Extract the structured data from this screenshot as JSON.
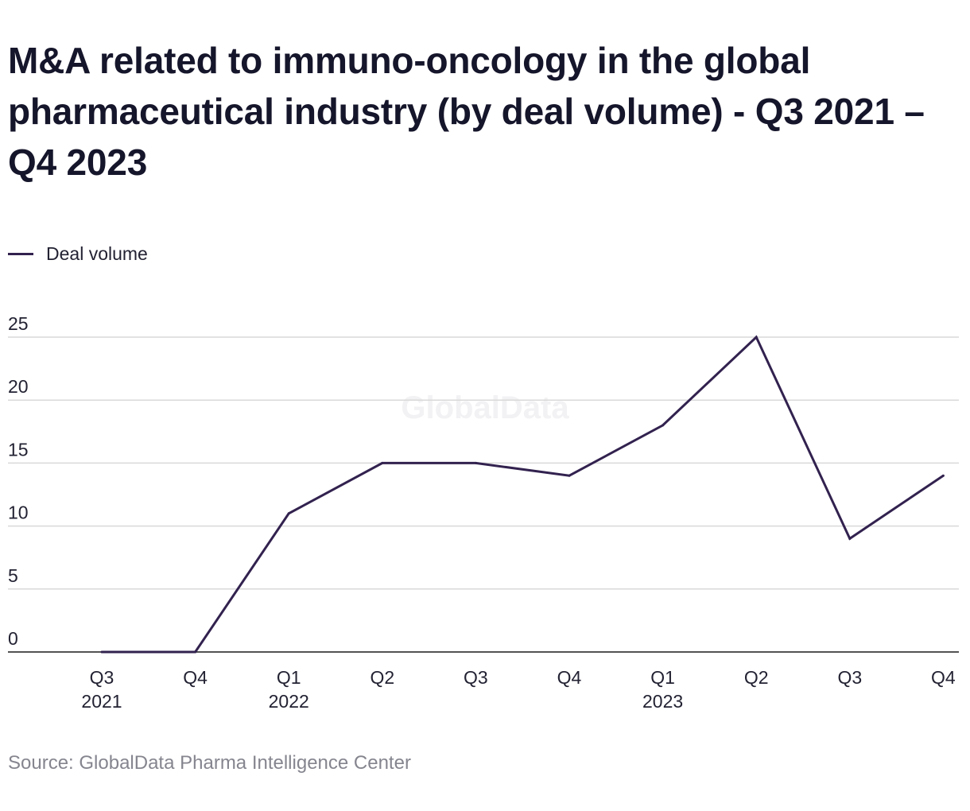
{
  "title": "M&A related to immuno-oncology in the global pharmaceutical industry (by deal volume) - Q3 2021 – Q4 2023",
  "legend": {
    "label": "Deal volume"
  },
  "source": "Source: GlobalData Pharma Intelligence Center",
  "watermark": "GlobalData",
  "colors": {
    "line": "#32224f",
    "grid": "#d9d9d9",
    "axis": "#1a1a1a",
    "text": "#222233",
    "source": "#85858f"
  },
  "chart_data": {
    "type": "line",
    "categories": [
      "Q3 2021",
      "Q4 2021",
      "Q1 2022",
      "Q2 2022",
      "Q3 2022",
      "Q4 2022",
      "Q1 2023",
      "Q2 2023",
      "Q3 2023",
      "Q4 2023"
    ],
    "tick_labels": [
      [
        "Q3",
        "2021"
      ],
      [
        "Q4"
      ],
      [
        "Q1",
        "2022"
      ],
      [
        "Q2"
      ],
      [
        "Q3"
      ],
      [
        "Q4"
      ],
      [
        "Q1",
        "2023"
      ],
      [
        "Q2"
      ],
      [
        "Q3"
      ],
      [
        "Q4"
      ]
    ],
    "series": [
      {
        "name": "Deal volume",
        "values": [
          0,
          0,
          11,
          15,
          15,
          14,
          18,
          25,
          9,
          14
        ]
      }
    ],
    "title": "M&A related to immuno-oncology in the global pharmaceutical industry (by deal volume) - Q3 2021 – Q4 2023",
    "xlabel": "",
    "ylabel": "",
    "ylim": [
      0,
      25
    ],
    "yticks": [
      0,
      5,
      10,
      15,
      20,
      25
    ],
    "grid": true,
    "legend_position": "top-left"
  }
}
